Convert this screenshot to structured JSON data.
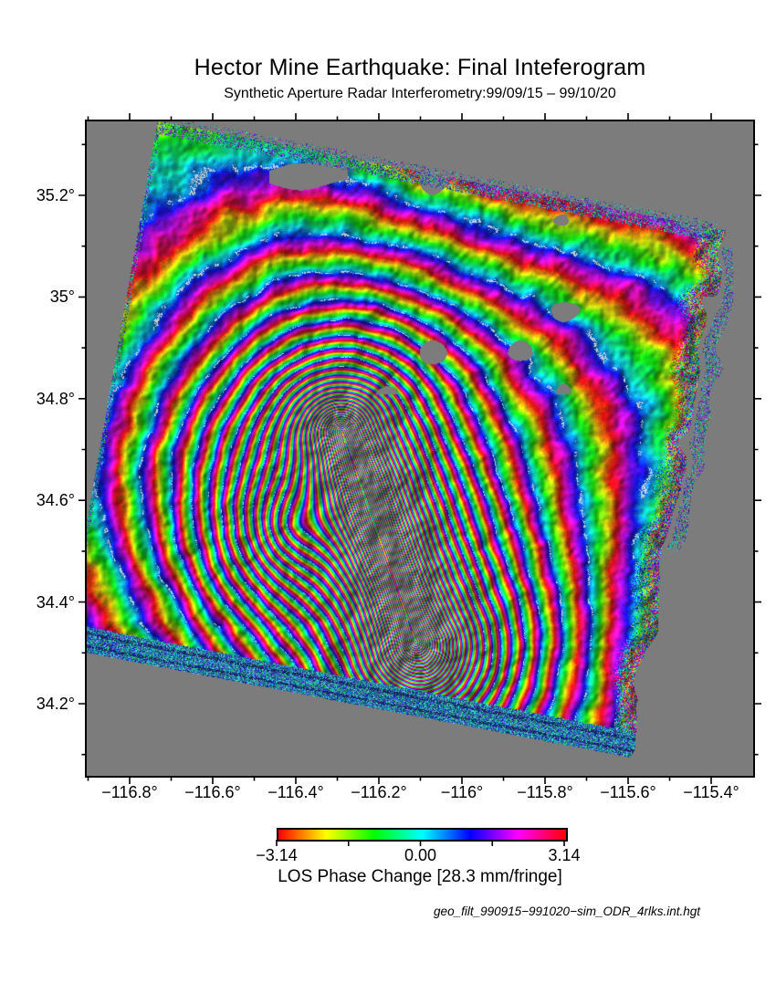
{
  "figure": {
    "title": "Hector Mine Earthquake: Final Inteferogram",
    "subtitle": "Synthetic Aperture Radar Interferometry:99/09/15 – 99/10/20"
  },
  "axes": {
    "x": {
      "major_ticks": [
        {
          "value": -116.8,
          "label": "−116.8°"
        },
        {
          "value": -116.6,
          "label": "−116.6°"
        },
        {
          "value": -116.4,
          "label": "−116.4°"
        },
        {
          "value": -116.2,
          "label": "−116.2°"
        },
        {
          "value": -116.0,
          "label": "−116°"
        },
        {
          "value": -115.8,
          "label": "−115.8°"
        },
        {
          "value": -115.6,
          "label": "−115.6°"
        },
        {
          "value": -115.4,
          "label": "−115.4°"
        }
      ],
      "minor_step": 0.1,
      "range": [
        -116.905,
        -115.297
      ]
    },
    "y": {
      "major_ticks": [
        {
          "value": 35.2,
          "label": "35.2°"
        },
        {
          "value": 35.0,
          "label": "35°"
        },
        {
          "value": 34.8,
          "label": "34.8°"
        },
        {
          "value": 34.6,
          "label": "34.6°"
        },
        {
          "value": 34.4,
          "label": "34.4°"
        },
        {
          "value": 34.2,
          "label": "34.2°"
        }
      ],
      "minor_step": 0.1,
      "range": [
        34.056,
        35.347
      ]
    }
  },
  "colorbar": {
    "tick_labels": [
      {
        "value": -3.14,
        "label": "−3.14"
      },
      {
        "value": 0,
        "label": "0.00"
      },
      {
        "value": 3.14,
        "label": "3.14"
      }
    ],
    "minor_tick_values": [
      -1.57,
      1.57
    ],
    "label": "LOS Phase Change [28.3 mm/fringe]"
  },
  "footer": {
    "filename": "geo_filt_990915−991020−sim_ODR_4rlks.int.hgt"
  },
  "colors": {
    "plot_background": "#7c7c7c",
    "frame": "#000000",
    "page_background": "#ffffff"
  },
  "chart_data": {
    "type": "heatmap",
    "title": "Hector Mine Earthquake: Final Inteferogram",
    "subtitle": "Synthetic Aperture Radar Interferometry:99/09/15 – 99/10/20",
    "xlabel": "",
    "ylabel": "",
    "x_ticks": [
      -116.8,
      -116.6,
      -116.4,
      -116.2,
      -116.0,
      -115.8,
      -115.6,
      -115.4
    ],
    "y_ticks": [
      35.2,
      35.0,
      34.8,
      34.6,
      34.4,
      34.2
    ],
    "xlim": [
      -116.905,
      -115.297
    ],
    "ylim": [
      34.056,
      35.347
    ],
    "grid": false,
    "colorbar": {
      "min": -3.14,
      "max": 3.14,
      "labeled_ticks": [
        -3.14,
        0.0,
        3.14
      ],
      "minor_ticks": [
        -1.57,
        1.57
      ],
      "label": "LOS Phase Change [28.3 mm/fringe]",
      "units": "radians (wrapped phase)",
      "palette": "cyclic rainbow: red → yellow → green → cyan → blue → violet → magenta → red",
      "mm_per_fringe": 28.3
    },
    "image": {
      "description": "Rotated SAR swath (~11° clockwise) of wrapped interferometric phase over gray background; dense aliased fringe core along a NNW–SSE fault trace, concentric fringe lobe opening to the west, fringe fan radiating from the southern fault tip, broad wrapped-phase bands and shaded-relief texture elsewhere, noisy speckle strips along swath edges, small gray decorrelation patches in the north, meandering white dotted contour lines",
      "swath_corners_lonlat": [
        [
          -116.74,
          35.33
        ],
        [
          -115.38,
          35.12
        ],
        [
          -115.62,
          34.1
        ],
        [
          -116.96,
          34.31
        ]
      ],
      "fault_trace_lonlat": [
        [
          -116.29,
          34.73
        ],
        [
          -116.11,
          34.32
        ]
      ],
      "west_lobe_center_lonlat": [
        -116.41,
        34.54
      ],
      "south_fan_apex_lonlat": [
        -116.09,
        34.27
      ],
      "background_color": "#7c7c7c"
    }
  }
}
